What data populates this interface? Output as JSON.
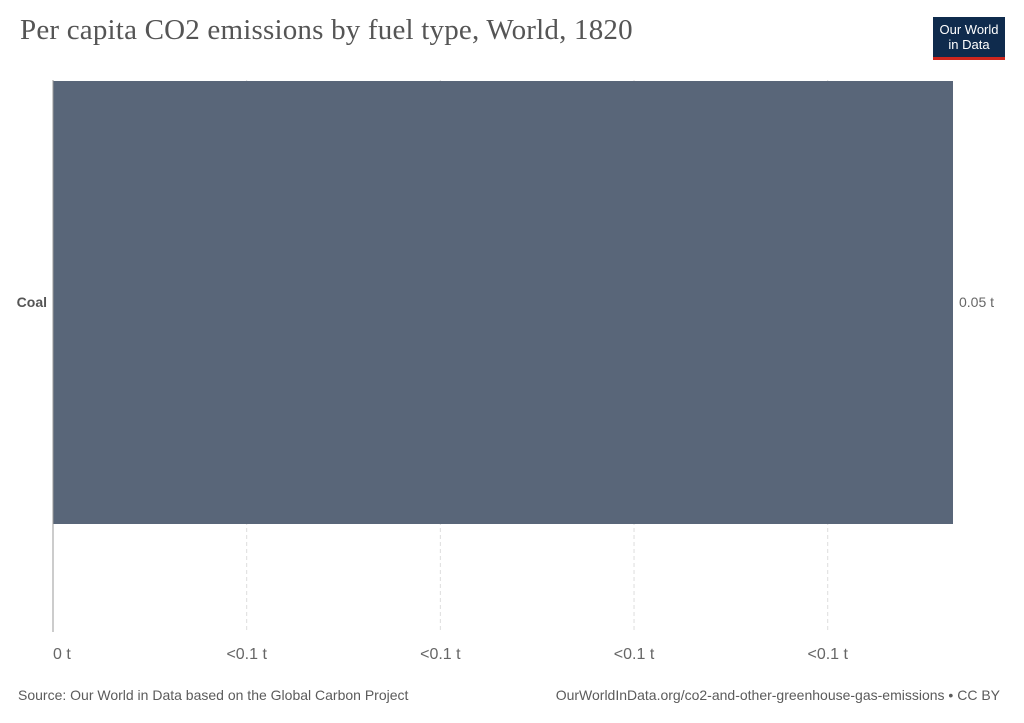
{
  "header": {
    "title": "Per capita CO2 emissions by fuel type, World, 1820",
    "logo_line1": "Our World",
    "logo_line2": "in Data"
  },
  "footer": {
    "source": "Source: Our World in Data based on the Global Carbon Project",
    "url": "OurWorldInData.org/co2-and-other-greenhouse-gas-emissions • CC BY"
  },
  "colors": {
    "bar": "#596679",
    "grid": "#dddddd",
    "axis": "#999999"
  },
  "chart_data": {
    "type": "bar",
    "orientation": "horizontal",
    "title": "Per capita CO2 emissions by fuel type, World, 1820",
    "categories": [
      "Coal"
    ],
    "values": [
      0.05
    ],
    "value_labels": [
      "0.05 t"
    ],
    "xlim": [
      0,
      0.05
    ],
    "x_tick_values": [
      0,
      0.01076,
      0.02152,
      0.03228,
      0.04304
    ],
    "x_tick_labels": [
      "0 t",
      "<0.1 t",
      "<0.1 t",
      "<0.1 t",
      "<0.1 t"
    ],
    "grid": true
  }
}
